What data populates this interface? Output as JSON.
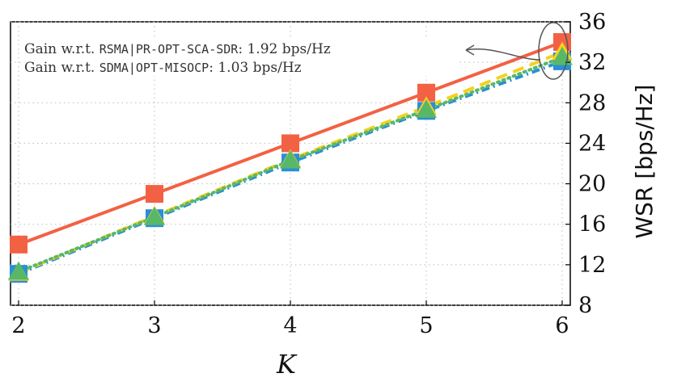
{
  "chart_data": {
    "type": "line",
    "title": "",
    "xlabel": "K",
    "ylabel": "WSR [bps/Hz]",
    "x": [
      2,
      3,
      4,
      5,
      6
    ],
    "xlim": [
      2,
      6
    ],
    "ylim": [
      8,
      36
    ],
    "yticks": [
      8,
      12,
      16,
      20,
      24,
      28,
      32,
      36
    ],
    "grid": true,
    "y_axis_position": "right",
    "series": [
      {
        "values": [
          14.0,
          19.0,
          24.0,
          29.0,
          34.0
        ],
        "color": "#f26144",
        "linestyle": "solid",
        "marker": "square"
      },
      {
        "values": [
          11.1,
          16.6,
          22.1,
          27.2,
          32.1
        ],
        "color": "#2a8fd6",
        "linestyle": "dashdot",
        "marker": "square"
      },
      {
        "values": [
          11.2,
          16.8,
          22.4,
          27.6,
          33.0
        ],
        "color": "#f5d11f",
        "linestyle": "dashed",
        "marker": "triangle"
      },
      {
        "values": [
          11.3,
          16.7,
          22.3,
          27.3,
          32.5
        ],
        "color": "#58b868",
        "linestyle": "dotted",
        "marker": "triangle"
      }
    ],
    "annotations": [
      {
        "prefix": "Gain w.r.t. ",
        "method": "RSMA|PR-OPT-SCA-SDR",
        "suffix": ": 1.92 bps/Hz"
      },
      {
        "prefix": "Gain w.r.t. ",
        "method": "SDMA|OPT-MISOCP",
        "suffix": ": 1.03 bps/Hz"
      }
    ]
  }
}
